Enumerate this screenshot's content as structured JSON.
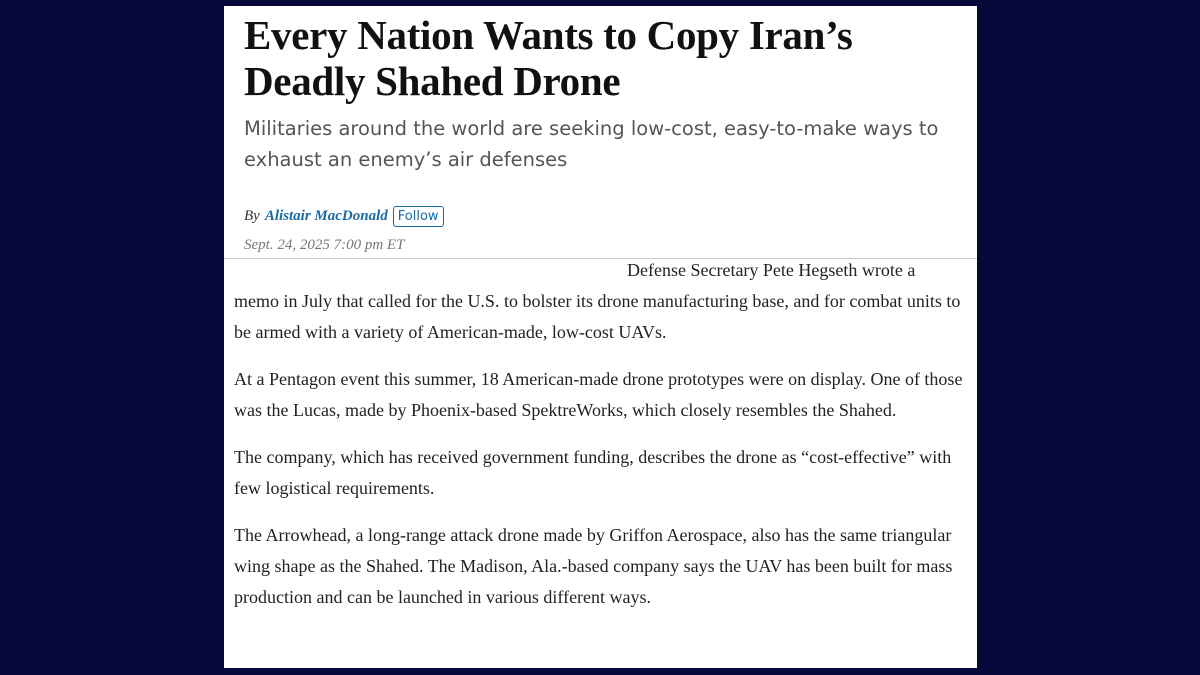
{
  "article": {
    "headline": "Every Nation Wants to Copy Iran’s Deadly Shahed Drone",
    "dek": "Militaries around the world are seeking low-cost, easy-to-make ways to exhaust an enemy’s air defenses",
    "byline_prefix": "By",
    "author": "Alistair MacDonald",
    "follow": "Follow",
    "date": "Sept. 24, 2025 7:00 pm ET",
    "paragraphs": [
      "Defense Secretary Pete Hegseth wrote a memo in July that called for the U.S. to bolster its drone manufacturing base, and for combat units to be armed with a variety of American-made, low-cost UAVs.",
      "At a Pentagon event this summer, 18 American-made drone prototypes were on display. One of those was the Lucas, made by Phoenix-based SpektreWorks, which closely resembles the Shahed.",
      "The company, which has received government funding, describes the drone as “cost-effective” with few logistical requirements.",
      "The Arrowhead, a long-range attack drone made by Griffon Aerospace, also has the same triangular wing shape as the Shahed. The Madison, Ala.-based company says the UAV has been built for mass production and can be launched in various different ways."
    ]
  }
}
